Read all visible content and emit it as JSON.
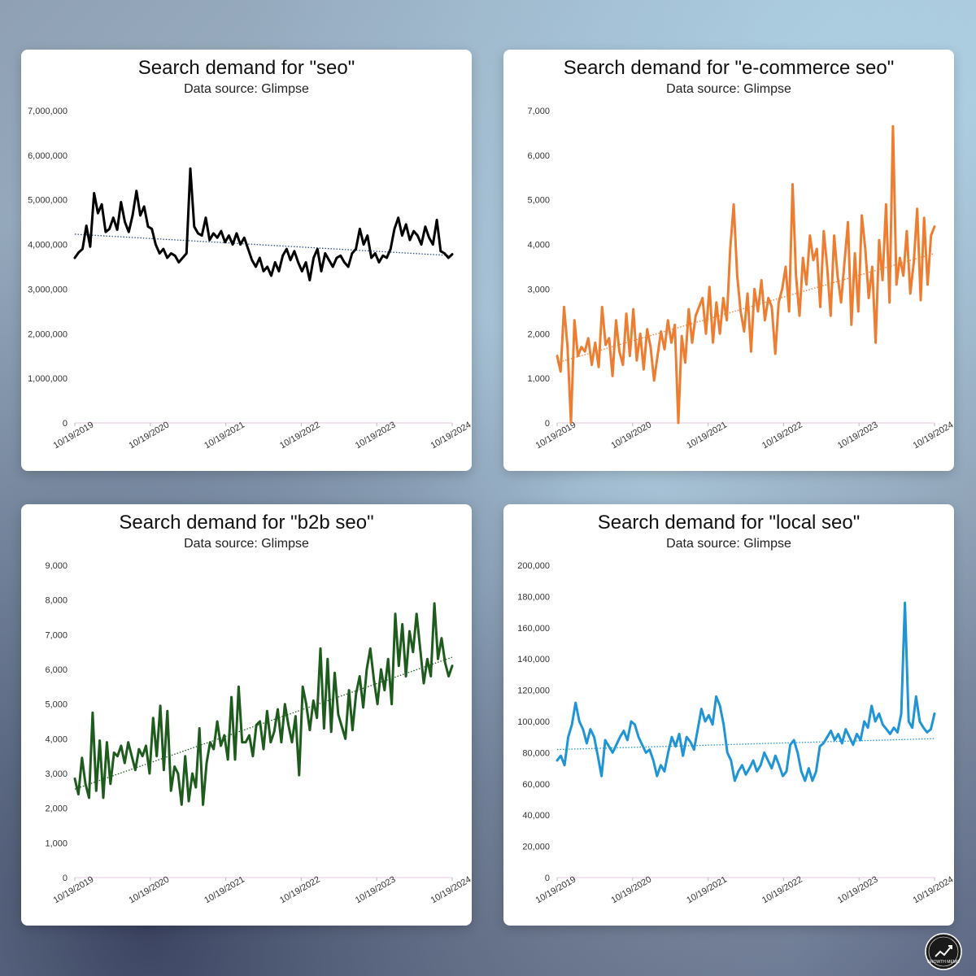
{
  "cards": [
    {
      "title": "Search demand for \"seo\"",
      "subtitle": "Data source: Glimpse",
      "color": "#000000",
      "trend_color": "#2e4f8a",
      "chart_data": {
        "type": "line",
        "title": "Search demand for \"seo\"",
        "subtitle": "Data source: Glimpse",
        "x_ticks": [
          "10/19/2019",
          "10/19/2020",
          "10/19/2021",
          "10/19/2022",
          "10/19/2023",
          "10/19/2024"
        ],
        "ylim": [
          0,
          7000000
        ],
        "y_ticks": [
          "0",
          "1,000,000",
          "2,000,000",
          "3,000,000",
          "4,000,000",
          "5,000,000",
          "6,000,000",
          "7,000,000"
        ],
        "trendline": {
          "style": "dotted",
          "start": 4230000,
          "end": 3750000
        },
        "x_start": "10/19/2019",
        "x_end": "10/19/2024",
        "values": [
          3700000,
          3820000,
          3900000,
          4420000,
          3950000,
          5150000,
          4700000,
          4900000,
          4280000,
          4350000,
          4600000,
          4330000,
          4950000,
          4500000,
          4280000,
          4650000,
          5200000,
          4650000,
          4850000,
          4400000,
          4350000,
          4000000,
          3800000,
          3900000,
          3700000,
          3800000,
          3750000,
          3600000,
          3700000,
          3800000,
          5700000,
          4400000,
          4250000,
          4200000,
          4600000,
          4100000,
          4250000,
          4150000,
          4300000,
          4050000,
          4200000,
          4000000,
          4250000,
          4000000,
          4150000,
          3900000,
          3650000,
          3500000,
          3700000,
          3400000,
          3500000,
          3300000,
          3600000,
          3400000,
          3750000,
          3900000,
          3650000,
          3850000,
          3600000,
          3400000,
          3600000,
          3200000,
          3700000,
          3900000,
          3400000,
          3800000,
          3650000,
          3500000,
          3700000,
          3750000,
          3600000,
          3500000,
          3800000,
          3900000,
          4350000,
          4000000,
          4200000,
          3700000,
          3800000,
          3600000,
          3750000,
          3700000,
          3900000,
          4350000,
          4600000,
          4200000,
          4450000,
          4100000,
          4300000,
          4200000,
          4000000,
          4400000,
          4150000,
          4000000,
          4550000,
          3850000,
          3800000,
          3700000,
          3780000
        ]
      }
    },
    {
      "title": "Search demand for \"e-commerce seo\"",
      "subtitle": "Data source: Glimpse",
      "color": "#ed7d31",
      "trend_color": "#ed7d31",
      "chart_data": {
        "type": "line",
        "title": "Search demand for \"e-commerce seo\"",
        "subtitle": "Data source: Glimpse",
        "x_ticks": [
          "10/19/2019",
          "10/19/2020",
          "10/19/2021",
          "10/19/2022",
          "10/19/2023",
          "10/19/2024"
        ],
        "ylim": [
          0,
          7000
        ],
        "y_ticks": [
          "0",
          "1,000",
          "2,000",
          "3,000",
          "4,000",
          "5,000",
          "6,000",
          "7,000"
        ],
        "trendline": {
          "style": "dotted",
          "start": 1350,
          "end": 3800
        },
        "x_start": "10/19/2019",
        "x_end": "10/19/2024",
        "values": [
          1500,
          1150,
          2600,
          1700,
          0,
          2300,
          1500,
          1700,
          1600,
          1900,
          1300,
          1800,
          1250,
          2600,
          1750,
          1900,
          1050,
          2300,
          1600,
          1300,
          2450,
          1500,
          2550,
          1400,
          2000,
          1200,
          2100,
          1700,
          950,
          1500,
          2050,
          1650,
          2300,
          1800,
          2200,
          0,
          1950,
          1350,
          2550,
          1800,
          2400,
          2600,
          2800,
          2000,
          3050,
          1800,
          2700,
          2000,
          2800,
          2300,
          3900,
          4900,
          3300,
          2500,
          2050,
          2900,
          1600,
          3000,
          2500,
          3200,
          2300,
          2800,
          2600,
          1550,
          2700,
          3000,
          3500,
          2500,
          5350,
          3300,
          2400,
          3700,
          3100,
          4200,
          3650,
          3900,
          2600,
          4300,
          3500,
          2400,
          4200,
          3300,
          2700,
          3600,
          4500,
          2200,
          3800,
          2500,
          4650,
          3900,
          2800,
          3500,
          1800,
          4100,
          3200,
          4900,
          2700,
          6650,
          3100,
          3700,
          3300,
          4300,
          2900,
          3600,
          4800,
          2750,
          4600,
          3100,
          4200,
          4400
        ]
      }
    },
    {
      "title": "Search demand for \"b2b seo\"",
      "subtitle": "Data source: Glimpse",
      "color": "#1e5c1e",
      "trend_color": "#1e5c1e",
      "chart_data": {
        "type": "line",
        "title": "Search demand for \"b2b seo\"",
        "subtitle": "Data source: Glimpse",
        "x_ticks": [
          "10/19/2019",
          "10/19/2020",
          "10/19/2021",
          "10/19/2022",
          "10/19/2023",
          "10/19/2024"
        ],
        "ylim": [
          0,
          9000
        ],
        "y_ticks": [
          "0",
          "1,000",
          "2,000",
          "3,000",
          "4,000",
          "5,000",
          "6,000",
          "7,000",
          "8,000",
          "9,000"
        ],
        "trendline": {
          "style": "dotted",
          "start": 2550,
          "end": 6350
        },
        "x_start": "10/19/2019",
        "x_end": "10/19/2024",
        "values": [
          2850,
          2400,
          3450,
          2700,
          2300,
          4750,
          2500,
          3950,
          2300,
          3900,
          2700,
          3600,
          3500,
          3800,
          3300,
          3900,
          3500,
          3100,
          3700,
          3500,
          3800,
          3000,
          4600,
          3500,
          4950,
          3100,
          4800,
          2500,
          3200,
          3000,
          2100,
          3500,
          2200,
          3000,
          2600,
          4300,
          2100,
          3300,
          3900,
          3700,
          4500,
          3800,
          4100,
          3400,
          5200,
          3400,
          5500,
          3900,
          3900,
          4100,
          3500,
          4400,
          4500,
          3700,
          4800,
          3900,
          4200,
          4850,
          3900,
          5000,
          4400,
          3900,
          4650,
          2950,
          5500,
          5000,
          4250,
          5100,
          4600,
          6600,
          4300,
          6300,
          4200,
          5900,
          4700,
          4350,
          4000,
          5400,
          4250,
          5300,
          5800,
          4900,
          6000,
          6600,
          5700,
          5000,
          6000,
          5400,
          6300,
          5000,
          7600,
          6100,
          7300,
          5800,
          7100,
          6500,
          7600,
          6600,
          5600,
          6300,
          5800,
          7900,
          6300,
          6900,
          6200,
          5800,
          6100
        ]
      }
    },
    {
      "title": "Search demand for \"local seo\"",
      "subtitle": "Data source: Glimpse",
      "color": "#1f95d6",
      "trend_color": "#1f95d6",
      "chart_data": {
        "type": "line",
        "title": "Search demand for \"local seo\"",
        "subtitle": "Data source: Glimpse",
        "x_ticks": [
          "10/19/2019",
          "10/19/2020",
          "10/19/2021",
          "10/19/2022",
          "10/19/2023",
          "10/19/2024"
        ],
        "ylim": [
          0,
          200000
        ],
        "y_ticks": [
          "0",
          "20,000",
          "40,000",
          "60,000",
          "80,000",
          "100,000",
          "120,000",
          "140,000",
          "160,000",
          "180,000",
          "200,000"
        ],
        "trendline": {
          "style": "dotted",
          "start": 82000,
          "end": 89000
        },
        "x_start": "10/19/2019",
        "x_end": "10/19/2024",
        "values": [
          75000,
          78000,
          72000,
          90000,
          98000,
          112000,
          100000,
          95000,
          86000,
          95000,
          90000,
          78000,
          65000,
          88000,
          84000,
          80000,
          85000,
          90000,
          94000,
          88000,
          100000,
          98000,
          90000,
          85000,
          80000,
          82000,
          75000,
          65000,
          72000,
          68000,
          80000,
          90000,
          84000,
          92000,
          78000,
          90000,
          87000,
          82000,
          95000,
          108000,
          100000,
          104000,
          98000,
          116000,
          110000,
          98000,
          80000,
          75000,
          62000,
          68000,
          72000,
          66000,
          70000,
          75000,
          68000,
          72000,
          80000,
          75000,
          70000,
          78000,
          72000,
          65000,
          68000,
          85000,
          88000,
          80000,
          68000,
          62000,
          70000,
          62000,
          68000,
          84000,
          86000,
          90000,
          94000,
          88000,
          92000,
          86000,
          95000,
          90000,
          85000,
          92000,
          88000,
          100000,
          96000,
          110000,
          100000,
          105000,
          98000,
          95000,
          92000,
          96000,
          93000,
          105000,
          176000,
          100000,
          96000,
          116000,
          100000,
          96000,
          93000,
          95000,
          105000
        ]
      }
    }
  ],
  "logo": {
    "icon": "growth-memo-logo",
    "text": "GROWTH MEMO"
  }
}
